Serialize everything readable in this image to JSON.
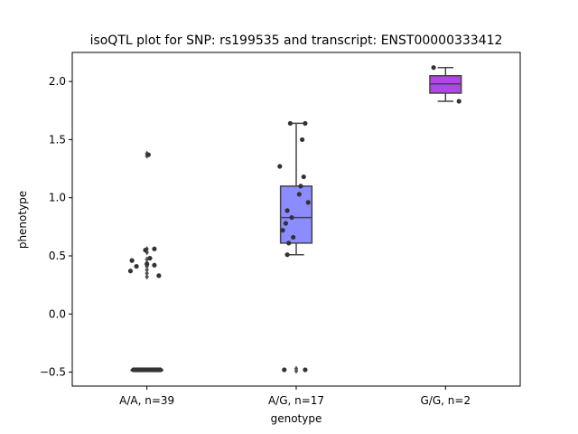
{
  "chart_data": {
    "type": "box",
    "title": "isoQTL plot for SNP: rs199535 and transcript: ENST00000333412",
    "xlabel": "genotype",
    "ylabel": "phenotype",
    "ylim": [
      -0.62,
      2.25
    ],
    "yticks": [
      -0.5,
      0.0,
      0.5,
      1.0,
      1.5,
      2.0
    ],
    "ytick_labels": [
      "−0.5",
      "0.0",
      "0.5",
      "1.0",
      "1.5",
      "2.0"
    ],
    "grid": false,
    "categories": [
      "A/A, n=39",
      "A/G, n=17",
      "G/G, n=2"
    ],
    "boxes": [
      {
        "category": "A/A, n=39",
        "color": "#4b5aa8",
        "min": -0.48,
        "q1": -0.48,
        "median": -0.48,
        "q3": -0.48,
        "max": -0.48,
        "outliers": [
          1.36,
          1.38,
          0.56,
          0.53,
          0.47,
          0.44,
          0.41,
          0.38,
          0.35,
          0.32
        ]
      },
      {
        "category": "A/G, n=17",
        "color": "#8a8cff",
        "min": 0.51,
        "q1": 0.61,
        "median": 0.83,
        "q3": 1.1,
        "max": 1.64,
        "outliers": [
          -0.47,
          -0.49
        ]
      },
      {
        "category": "G/G, n=2",
        "color": "#b045e8",
        "min": 1.83,
        "q1": 1.9,
        "median": 1.98,
        "q3": 2.05,
        "max": 2.12,
        "outliers": []
      }
    ],
    "points": [
      [
        {
          "jitter": -0.09,
          "y": -0.48
        },
        {
          "jitter": -0.08,
          "y": -0.48
        },
        {
          "jitter": -0.07,
          "y": -0.48
        },
        {
          "jitter": -0.06,
          "y": -0.48
        },
        {
          "jitter": -0.05,
          "y": -0.48
        },
        {
          "jitter": -0.04,
          "y": -0.48
        },
        {
          "jitter": -0.03,
          "y": -0.48
        },
        {
          "jitter": -0.02,
          "y": -0.48
        },
        {
          "jitter": -0.01,
          "y": -0.48
        },
        {
          "jitter": 0.0,
          "y": -0.48
        },
        {
          "jitter": 0.01,
          "y": -0.48
        },
        {
          "jitter": 0.02,
          "y": -0.48
        },
        {
          "jitter": 0.03,
          "y": -0.48
        },
        {
          "jitter": 0.04,
          "y": -0.48
        },
        {
          "jitter": 0.05,
          "y": -0.48
        },
        {
          "jitter": 0.06,
          "y": -0.48
        },
        {
          "jitter": 0.07,
          "y": -0.48
        },
        {
          "jitter": 0.08,
          "y": -0.48
        },
        {
          "jitter": 0.09,
          "y": -0.48
        },
        {
          "jitter": -0.085,
          "y": -0.48
        },
        {
          "jitter": -0.035,
          "y": -0.48
        },
        {
          "jitter": 0.035,
          "y": -0.48
        },
        {
          "jitter": 0.085,
          "y": -0.48
        },
        {
          "jitter": 0.015,
          "y": -0.48
        },
        {
          "jitter": -0.015,
          "y": -0.48
        },
        {
          "jitter": 0.065,
          "y": -0.48
        },
        {
          "jitter": -0.065,
          "y": -0.48
        },
        {
          "jitter": 0.045,
          "y": -0.48
        },
        {
          "jitter": -0.045,
          "y": -0.48
        },
        {
          "jitter": 0.01,
          "y": 1.37
        },
        {
          "jitter": 0.05,
          "y": 0.56
        },
        {
          "jitter": -0.1,
          "y": 0.46
        },
        {
          "jitter": 0.05,
          "y": 0.42
        },
        {
          "jitter": -0.07,
          "y": 0.41
        },
        {
          "jitter": 0.0,
          "y": 0.43
        },
        {
          "jitter": -0.11,
          "y": 0.37
        },
        {
          "jitter": 0.08,
          "y": 0.33
        },
        {
          "jitter": -0.01,
          "y": 0.55
        },
        {
          "jitter": 0.02,
          "y": 0.48
        }
      ],
      [
        {
          "jitter": -0.04,
          "y": 1.64
        },
        {
          "jitter": 0.06,
          "y": 1.64
        },
        {
          "jitter": 0.04,
          "y": 1.5
        },
        {
          "jitter": -0.11,
          "y": 1.27
        },
        {
          "jitter": 0.05,
          "y": 1.18
        },
        {
          "jitter": 0.03,
          "y": 1.1
        },
        {
          "jitter": 0.02,
          "y": 1.03
        },
        {
          "jitter": 0.08,
          "y": 0.96
        },
        {
          "jitter": -0.06,
          "y": 0.89
        },
        {
          "jitter": -0.03,
          "y": 0.83
        },
        {
          "jitter": -0.07,
          "y": 0.78
        },
        {
          "jitter": -0.09,
          "y": 0.72
        },
        {
          "jitter": -0.02,
          "y": 0.66
        },
        {
          "jitter": -0.05,
          "y": 0.61
        },
        {
          "jitter": -0.06,
          "y": 0.51
        },
        {
          "jitter": -0.08,
          "y": -0.48
        },
        {
          "jitter": 0.06,
          "y": -0.48
        }
      ],
      [
        {
          "jitter": -0.08,
          "y": 2.12
        },
        {
          "jitter": 0.09,
          "y": 1.83
        }
      ]
    ]
  }
}
